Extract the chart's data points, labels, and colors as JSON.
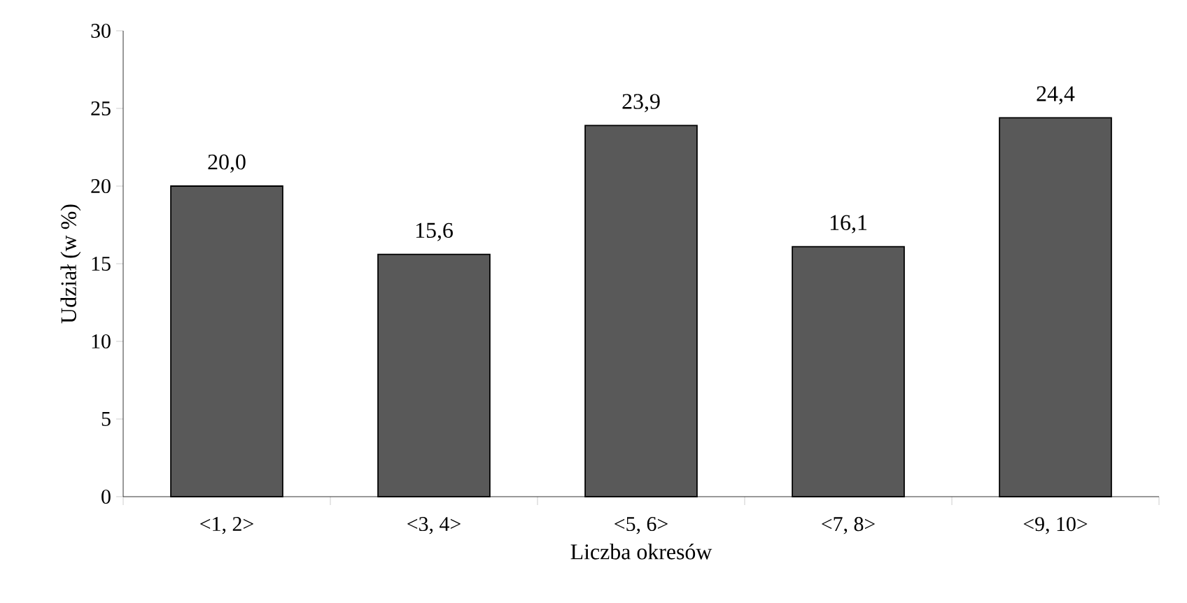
{
  "chart_data": {
    "type": "bar",
    "xlabel": "Liczba okresów",
    "ylabel": "Udział (w %)",
    "categories": [
      "<1, 2>",
      "<3, 4>",
      "<5, 6>",
      "<7, 8>",
      "<9, 10>"
    ],
    "values": [
      20.0,
      15.6,
      23.9,
      16.1,
      24.4
    ],
    "value_labels": [
      "20,0",
      "15,6",
      "23,9",
      "16,1",
      "24,4"
    ],
    "color": "#595959",
    "ylim": [
      0,
      30
    ],
    "yticks": [
      0,
      5,
      10,
      15,
      20,
      25,
      30
    ]
  }
}
